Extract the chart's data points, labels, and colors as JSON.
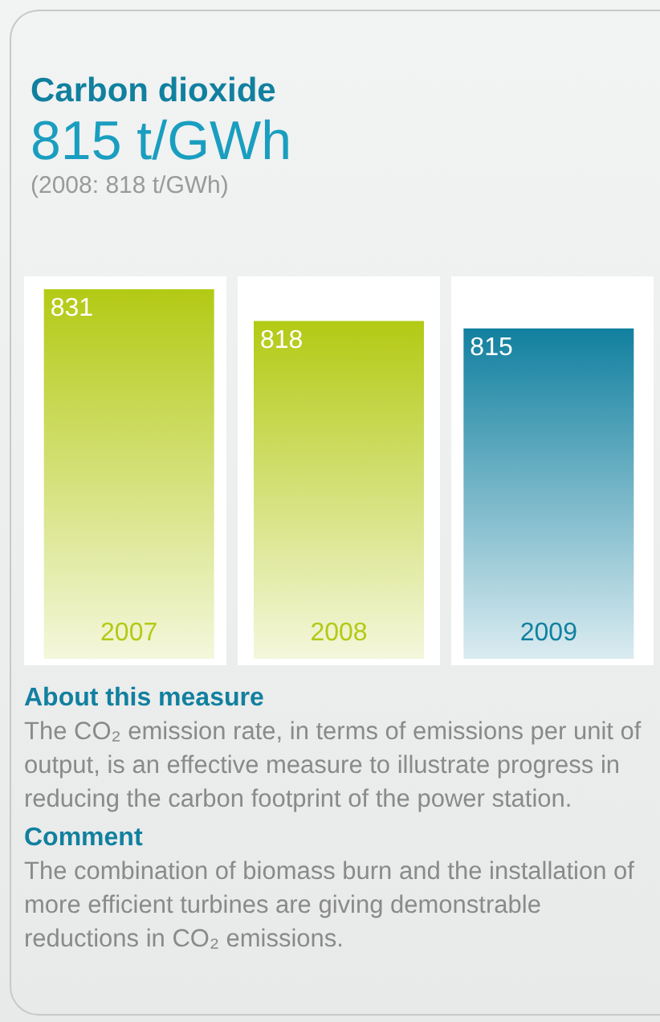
{
  "chart_data": {
    "type": "bar",
    "title": "Carbon dioxide",
    "subtitle": "815 t/GWh\n(2008: 818 t/GWh)",
    "categories": [
      "2007",
      "2008",
      "2009"
    ],
    "values": [
      831,
      818,
      815
    ],
    "colors": [
      "#b3ca14",
      "#b3ca14",
      "#11809f"
    ],
    "ylim": [
      680,
      831
    ],
    "data_labels": true,
    "tick_labels": "x",
    "annotations": [
      "About this measure",
      "The CO₂ emission rate, in terms of emissions per unit of output, is an effective measure to illustrate progress in reducing the carbon footprint of the power station.",
      "Comment",
      "The combination of biomass burn and the installation of more efficient turbines are giving demonstrable reductions in CO₂ emissions."
    ]
  }
}
